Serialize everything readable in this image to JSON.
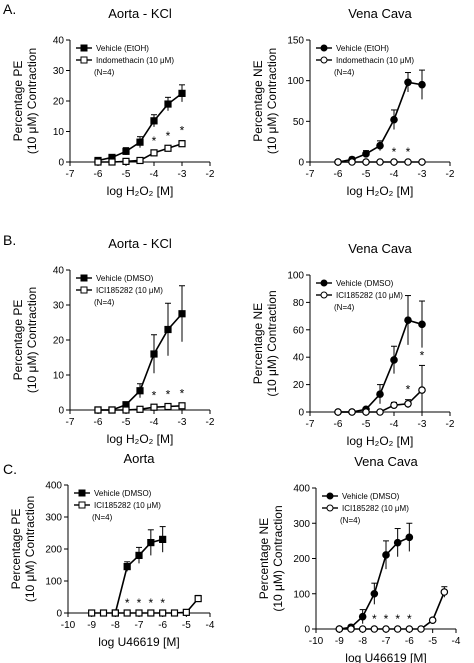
{
  "panel_labels": [
    "A.",
    "B.",
    "C."
  ],
  "chart_data": [
    {
      "type": "line",
      "panel": "A.",
      "title": "Aorta - KCl",
      "xlabel": "log H₂O₂ [M]",
      "ylabel": [
        "Percentage PE",
        "(10 μM) Contraction"
      ],
      "xlim": [
        -7,
        -2
      ],
      "xticks": [
        -7,
        -6,
        -5,
        -4,
        -3,
        -2
      ],
      "ylim": [
        0,
        40
      ],
      "yticks": [
        0,
        10,
        20,
        30,
        40
      ],
      "marker": "square",
      "legend": [
        "Vehicle (EtOH)",
        "Indomethacin (10 μM)"
      ],
      "note": "(N=4)",
      "series": [
        {
          "name": "Vehicle (EtOH)",
          "filled": true,
          "x": [
            -6,
            -5.5,
            -5,
            -4.5,
            -4,
            -3.5,
            -3
          ],
          "y": [
            0.5,
            1.5,
            3.5,
            6.5,
            13.5,
            19,
            22.5
          ],
          "err": [
            0.3,
            0.6,
            1.2,
            1.8,
            2,
            2.2,
            2.8
          ]
        },
        {
          "name": "Indomethacin (10 μM)",
          "filled": false,
          "x": [
            -6,
            -5.5,
            -5,
            -4.5,
            -4,
            -3.5,
            -3
          ],
          "y": [
            0,
            0,
            0.2,
            0.5,
            3,
            4.5,
            6
          ],
          "err": [
            0,
            0,
            0.2,
            0.3,
            0.6,
            0.8,
            1
          ]
        }
      ],
      "significance": {
        "x": [
          -4,
          -3.5,
          -3
        ],
        "label": "*"
      }
    },
    {
      "type": "line",
      "panel": "A.",
      "title": "Vena Cava",
      "xlabel": "log H₂O₂ [M]",
      "ylabel": [
        "Percentage NE",
        "(10 μM) Contraction"
      ],
      "xlim": [
        -7,
        -2
      ],
      "xticks": [
        -7,
        -6,
        -5,
        -4,
        -3,
        -2
      ],
      "ylim": [
        0,
        150
      ],
      "yticks": [
        0,
        50,
        100,
        150
      ],
      "marker": "circle",
      "legend": [
        "Vehicle (EtOH)",
        "Indomethacin (10 μM)"
      ],
      "note": "(N=4)",
      "series": [
        {
          "name": "Vehicle (EtOH)",
          "filled": true,
          "x": [
            -6,
            -5.5,
            -5,
            -4.5,
            -4,
            -3.5,
            -3
          ],
          "y": [
            0,
            3,
            10,
            20,
            52,
            98,
            95
          ],
          "err": [
            0,
            3,
            4,
            6,
            12,
            12,
            18
          ]
        },
        {
          "name": "Indomethacin (10 μM)",
          "filled": false,
          "x": [
            -6,
            -5.5,
            -5,
            -4.5,
            -4,
            -3.5,
            -3
          ],
          "y": [
            0,
            0,
            0,
            0,
            0,
            0,
            0
          ],
          "err": [
            0,
            0,
            0,
            0,
            0,
            0,
            0
          ]
        }
      ],
      "significance": {
        "x": [
          -4,
          -3.5
        ],
        "label": "*"
      }
    },
    {
      "type": "line",
      "panel": "B.",
      "title": "Aorta - KCl",
      "xlabel": "log H₂O₂ [M]",
      "ylabel": [
        "Percentage PE",
        "(10 μM) Contraction"
      ],
      "xlim": [
        -7,
        -2
      ],
      "xticks": [
        -7,
        -6,
        -5,
        -4,
        -3,
        -2
      ],
      "ylim": [
        0,
        40
      ],
      "yticks": [
        0,
        10,
        20,
        30,
        40
      ],
      "marker": "square",
      "legend": [
        "Vehicle (DMSO)",
        "ICI185282 (10 μM)"
      ],
      "note": "(N=4)",
      "series": [
        {
          "name": "Vehicle (DMSO)",
          "filled": true,
          "x": [
            -6,
            -5.5,
            -5,
            -4.5,
            -4,
            -3.5,
            -3
          ],
          "y": [
            0,
            0,
            1.5,
            5.5,
            16,
            23,
            27.5
          ],
          "err": [
            0,
            0,
            0.8,
            2,
            5.5,
            7.5,
            8
          ]
        },
        {
          "name": "ICI185282 (10 μM)",
          "filled": false,
          "x": [
            -6,
            -5.5,
            -5,
            -4.5,
            -4,
            -3.5,
            -3
          ],
          "y": [
            0,
            0,
            0,
            0.2,
            0.8,
            1,
            1.2
          ],
          "err": [
            0,
            0,
            0,
            0.2,
            0.5,
            0.6,
            0.7
          ]
        }
      ],
      "significance": {
        "x": [
          -4,
          -3.5,
          -3
        ],
        "label": "*"
      }
    },
    {
      "type": "line",
      "panel": "B.",
      "title": "Vena Cava",
      "xlabel": "log H₂O₂ [M]",
      "ylabel": [
        "Percentage NE",
        "(10 μM) Contraction"
      ],
      "xlim": [
        -7,
        -2
      ],
      "xticks": [
        -7,
        -6,
        -5,
        -4,
        -3,
        -2
      ],
      "ylim": [
        0,
        100
      ],
      "yticks": [
        0,
        20,
        40,
        60,
        80,
        100
      ],
      "marker": "circle",
      "legend": [
        "Vehicle (DMSO)",
        "ICI185282 (10 μM)"
      ],
      "note": "(N=4)",
      "series": [
        {
          "name": "Vehicle (DMSO)",
          "filled": true,
          "x": [
            -6,
            -5.5,
            -5,
            -4.5,
            -4,
            -3.5,
            -3
          ],
          "y": [
            0,
            0,
            2,
            13,
            38,
            67,
            64
          ],
          "err": [
            0,
            0,
            1,
            7,
            10,
            18,
            17
          ]
        },
        {
          "name": "ICI185282 (10 μM)",
          "filled": false,
          "x": [
            -6,
            -5.5,
            -5,
            -4.5,
            -4,
            -3.5,
            -3
          ],
          "y": [
            0,
            0,
            0,
            0,
            5,
            6,
            16
          ],
          "err": [
            0,
            0,
            0,
            0,
            2,
            3,
            18
          ]
        }
      ],
      "significance": {
        "x": [
          -3.5,
          -3
        ],
        "label": "*"
      }
    },
    {
      "type": "line",
      "panel": "C.",
      "title": "Aorta",
      "xlabel": "log U46619 [M]",
      "ylabel": [
        "Percentage PE",
        "(10 μM) Contraction"
      ],
      "xlim": [
        -10,
        -4
      ],
      "xticks": [
        -10,
        -9,
        -8,
        -7,
        -6,
        -5,
        -4
      ],
      "ylim": [
        0,
        400
      ],
      "yticks": [
        0,
        100,
        200,
        300,
        400
      ],
      "marker": "square",
      "legend": [
        "Vehicle (DMSO)",
        "ICI185282 (10 μM)"
      ],
      "note": "(N=4)",
      "series": [
        {
          "name": "Vehicle (DMSO)",
          "filled": true,
          "x": [
            -8,
            -7.5,
            -7,
            -6.5,
            -6
          ],
          "y": [
            0,
            145,
            180,
            220,
            230
          ],
          "err": [
            0,
            15,
            25,
            40,
            40
          ]
        },
        {
          "name": "ICI185282 (10 μM)",
          "filled": false,
          "x": [
            -9,
            -8.5,
            -8,
            -7.5,
            -7,
            -6.5,
            -6,
            -5.5,
            -5,
            -4.5
          ],
          "y": [
            0,
            0,
            0,
            0,
            0,
            0,
            0,
            0,
            2,
            45
          ],
          "err": [
            0,
            0,
            0,
            0,
            0,
            0,
            0,
            0,
            2,
            10
          ]
        }
      ],
      "significance": {
        "x": [
          -7.5,
          -7,
          -6.5,
          -6
        ],
        "label": "*"
      }
    },
    {
      "type": "line",
      "panel": "C.",
      "title": "Vena Cava",
      "xlabel": "log U46619 [M]",
      "ylabel": [
        "Percentage NE",
        "(10 μM) Contraction"
      ],
      "xlim": [
        -10,
        -4
      ],
      "xticks": [
        -10,
        -9,
        -8,
        -7,
        -6,
        -5,
        -4
      ],
      "ylim": [
        0,
        400
      ],
      "yticks": [
        0,
        100,
        200,
        300,
        400
      ],
      "marker": "circle",
      "legend": [
        "Vehicle (DMSO)",
        "ICI185282 (10 μM)"
      ],
      "note": "(N=4)",
      "series": [
        {
          "name": "Vehicle (DMSO)",
          "filled": true,
          "x": [
            -9,
            -8.5,
            -8,
            -7.5,
            -7,
            -6.5,
            -6
          ],
          "y": [
            0,
            5,
            35,
            100,
            210,
            245,
            260
          ],
          "err": [
            0,
            5,
            20,
            30,
            40,
            40,
            40
          ]
        },
        {
          "name": "ICI185282 (10 μM)",
          "filled": false,
          "x": [
            -9,
            -8.5,
            -8,
            -7.5,
            -7,
            -6.5,
            -6,
            -5.5,
            -5,
            -4.5
          ],
          "y": [
            0,
            0,
            0,
            0,
            0,
            0,
            0,
            0,
            25,
            105
          ],
          "err": [
            0,
            0,
            0,
            0,
            0,
            0,
            0,
            0,
            5,
            15
          ]
        }
      ],
      "significance": {
        "x": [
          -7.5,
          -7,
          -6.5,
          -6
        ],
        "label": "*"
      }
    }
  ]
}
